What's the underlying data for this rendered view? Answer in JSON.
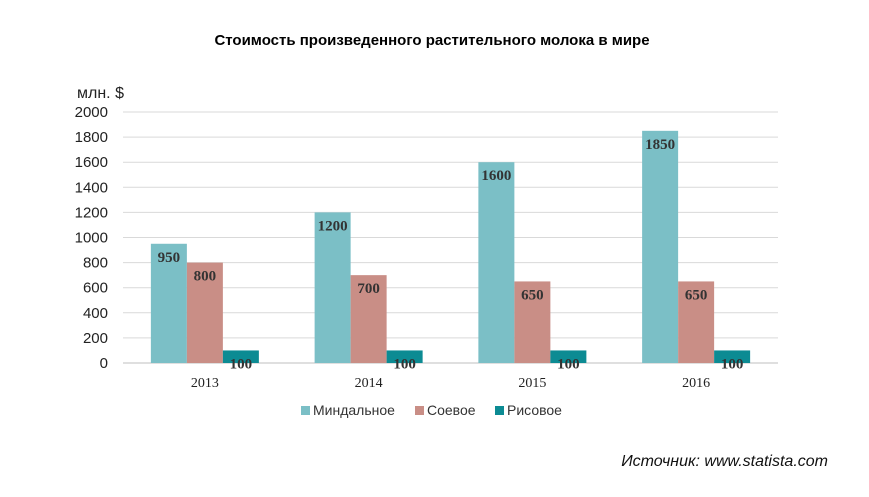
{
  "chart_data": {
    "type": "bar",
    "title": "Стоимость произведенного растительного молока в мире",
    "unit_label": "млн. $",
    "categories": [
      "2013",
      "2014",
      "2015",
      "2016"
    ],
    "series": [
      {
        "name": "Миндальное",
        "values": [
          950,
          1200,
          1600,
          1850
        ],
        "color": "#7bbfc6"
      },
      {
        "name": "Соевое",
        "values": [
          800,
          700,
          650,
          650
        ],
        "color": "#c98e86"
      },
      {
        "name": "Рисовое",
        "values": [
          100,
          100,
          100,
          100
        ],
        "color": "#0c8b93"
      }
    ],
    "ylim": [
      0,
      2000
    ],
    "yticks": [
      0,
      200,
      400,
      600,
      800,
      1000,
      1200,
      1400,
      1600,
      1800,
      2000
    ],
    "grid": true,
    "legend_position": "bottom",
    "source": "Источник: www.statista.com"
  }
}
